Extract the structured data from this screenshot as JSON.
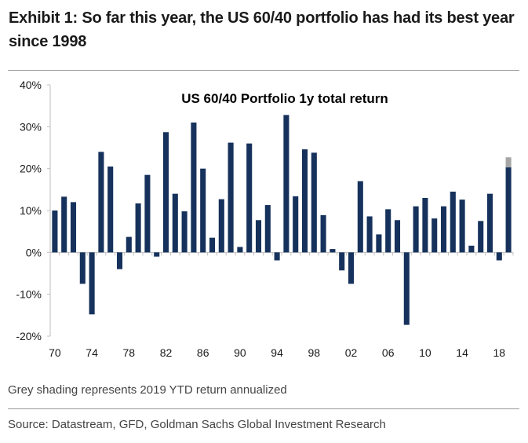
{
  "header": {
    "title": "Exhibit 1: So far this year, the US 60/40 portfolio has had its best year since 1998"
  },
  "footer": {
    "note": "Grey shading represents 2019 YTD return annualized",
    "source": "Source: Datastream, GFD, Goldman Sachs Global Investment Research"
  },
  "colors": {
    "bar": "#16325c",
    "ytd_extension": "#a6a6a6",
    "axis": "#bfbfbf"
  },
  "chart_data": {
    "type": "bar",
    "title": "US 60/40 Portfolio 1y total return",
    "xlabel": "",
    "ylabel": "",
    "ylim": [
      -20,
      40
    ],
    "yticks": [
      -20,
      -10,
      0,
      10,
      20,
      30,
      40
    ],
    "ytick_labels": [
      "-20%",
      "-10%",
      "0%",
      "10%",
      "20%",
      "30%",
      "40%"
    ],
    "x_tick_years": [
      1970,
      1974,
      1978,
      1982,
      1986,
      1990,
      1994,
      1998,
      2002,
      2006,
      2010,
      2014,
      2018
    ],
    "x_tick_labels": [
      "70",
      "74",
      "78",
      "82",
      "86",
      "90",
      "94",
      "98",
      "02",
      "06",
      "10",
      "14",
      "18"
    ],
    "grid": false,
    "legend": "none",
    "categories": [
      1970,
      1971,
      1972,
      1973,
      1974,
      1975,
      1976,
      1977,
      1978,
      1979,
      1980,
      1981,
      1982,
      1983,
      1984,
      1985,
      1986,
      1987,
      1988,
      1989,
      1990,
      1991,
      1992,
      1993,
      1994,
      1995,
      1996,
      1997,
      1998,
      1999,
      2000,
      2001,
      2002,
      2003,
      2004,
      2005,
      2006,
      2007,
      2008,
      2009,
      2010,
      2011,
      2012,
      2013,
      2014,
      2015,
      2016,
      2017,
      2018,
      2019
    ],
    "values": [
      10,
      13.3,
      12,
      -7.5,
      -14.8,
      24,
      20.5,
      -4,
      3.7,
      11.7,
      18.5,
      -1,
      28.7,
      14,
      9.8,
      31,
      20,
      3.5,
      12.7,
      26.2,
      1.3,
      26,
      7.7,
      11.3,
      -1.9,
      32.8,
      13.4,
      24.6,
      23.8,
      8.9,
      0.8,
      -4.3,
      -7.5,
      17,
      8.6,
      4.3,
      10.3,
      7.7,
      -17.3,
      11,
      13,
      8.1,
      11,
      14.5,
      12.6,
      1.6,
      7.5,
      14,
      -1.9,
      20.3
    ],
    "ytd_extension": {
      "category": 2019,
      "from": 20.3,
      "to": 22.7
    }
  }
}
